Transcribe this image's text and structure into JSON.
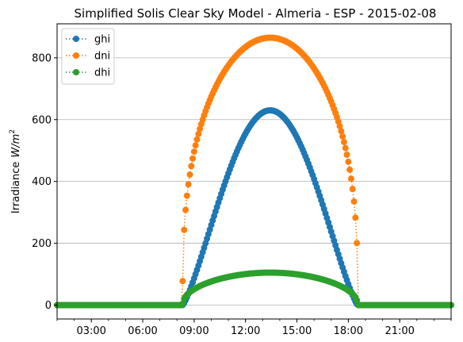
{
  "chart_data": {
    "type": "line",
    "title": "Simplified Solis Clear Sky Model - Almeria - ESP - 2015-02-08",
    "xlabel": "",
    "ylabel": "Irradiance",
    "ylabel_unit_var": "W",
    "ylabel_unit_den": "m",
    "ylabel_unit_exp": "2",
    "xlim": [
      1,
      24
    ],
    "ylim": [
      -45,
      910
    ],
    "sample_step_hours": 0.0833333,
    "x_ticks": [
      {
        "value": 3,
        "label": "03:00"
      },
      {
        "value": 6,
        "label": "06:00"
      },
      {
        "value": 9,
        "label": "09:00"
      },
      {
        "value": 12,
        "label": "12:00"
      },
      {
        "value": 15,
        "label": "15:00"
      },
      {
        "value": 18,
        "label": "18:00"
      },
      {
        "value": 21,
        "label": "21:00"
      }
    ],
    "y_ticks": [
      {
        "value": 0,
        "label": "0"
      },
      {
        "value": 200,
        "label": "200"
      },
      {
        "value": 400,
        "label": "400"
      },
      {
        "value": 600,
        "label": "600"
      },
      {
        "value": 800,
        "label": "800"
      }
    ],
    "grid": {
      "y": true,
      "x": false
    },
    "legend_position": "top-left",
    "sunrise_hour": 8.33,
    "sunset_hour": 18.55,
    "solar_noon_hour": 13.44,
    "series": [
      {
        "name": "ghi",
        "color": "#1f77b4",
        "peak": 630,
        "exponent": 1.25,
        "description": "bell curve peaking ~630 at 13:26"
      },
      {
        "name": "dni",
        "color": "#ff7f0e",
        "peak": 865,
        "exponent": 0.35,
        "description": "broad dome peaking ~865 at 13:26"
      },
      {
        "name": "dhi",
        "color": "#2ca02c",
        "peak": 105,
        "exponent": 0.45,
        "description": "low plateau peaking ~105 at 13:26"
      }
    ]
  }
}
